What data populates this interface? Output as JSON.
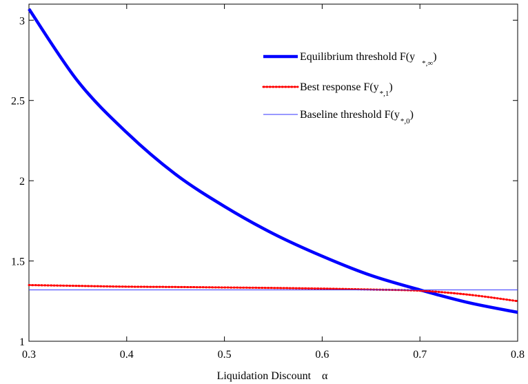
{
  "chart_data": {
    "type": "line",
    "xlabel": "Liquidation Discount",
    "xlabel_symbol": "α",
    "xlim": [
      0.3,
      0.8
    ],
    "ylim": [
      1,
      3.1
    ],
    "xticks": [
      "0.3",
      "0.4",
      "0.5",
      "0.6",
      "0.7",
      "0.8"
    ],
    "yticks": [
      "1",
      "1.5",
      "2",
      "2.5",
      "3"
    ],
    "grid": false,
    "legend_position": "top-right",
    "series": [
      {
        "name": "Equilibrium threshold F(y *,∞)",
        "legend_main": "Equilibrium threshold F(y",
        "legend_sub": "*,∞",
        "legend_close": ")",
        "style": "solid-thick",
        "color": "#0000ff",
        "x": [
          0.3,
          0.35,
          0.4,
          0.45,
          0.5,
          0.55,
          0.6,
          0.65,
          0.7,
          0.75,
          0.8
        ],
        "y": [
          3.07,
          2.62,
          2.3,
          2.04,
          1.84,
          1.67,
          1.53,
          1.41,
          1.32,
          1.24,
          1.18
        ]
      },
      {
        "name": "Best response F(y*,1)",
        "legend_main": "Best response F(y",
        "legend_sub": "*,1",
        "legend_close": ")",
        "style": "dotted",
        "color": "#ff0000",
        "x": [
          0.3,
          0.35,
          0.4,
          0.45,
          0.5,
          0.55,
          0.6,
          0.65,
          0.7,
          0.75,
          0.8
        ],
        "y": [
          1.35,
          1.345,
          1.34,
          1.338,
          1.335,
          1.332,
          1.328,
          1.322,
          1.315,
          1.29,
          1.25
        ]
      },
      {
        "name": "Baseline threshold F(y*,0)",
        "legend_main": "Baseline threshold F(y",
        "legend_sub": "*,0",
        "legend_close": ")",
        "style": "solid-thin",
        "color": "#3333ff",
        "x": [
          0.3,
          0.8
        ],
        "y": [
          1.32,
          1.32
        ]
      }
    ]
  }
}
